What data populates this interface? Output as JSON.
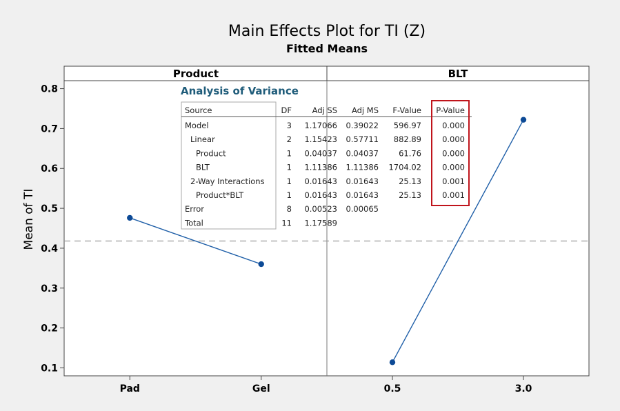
{
  "chart_data": {
    "type": "line",
    "title": "Main Effects Plot for TI (Z)",
    "subtitle": "Fitted Means",
    "ylabel": "Mean of TI",
    "ylim": [
      0.08,
      0.82
    ],
    "yticks": [
      "0.1",
      "0.2",
      "0.3",
      "0.4",
      "0.5",
      "0.6",
      "0.7",
      "0.8"
    ],
    "reference_mean": 0.418,
    "reference_line_style": "dashed",
    "panels": [
      {
        "label": "Product",
        "categories": [
          "Pad",
          "Gel"
        ],
        "values": [
          0.476,
          0.36
        ]
      },
      {
        "label": "BLT",
        "categories": [
          "0.5",
          "3.0"
        ],
        "values": [
          0.114,
          0.722
        ]
      }
    ],
    "line_color": "#1f5fa8",
    "marker_color": "#0d4a96",
    "highlight_color": "#c0141b",
    "anova": {
      "title": "Analysis of Variance",
      "columns": [
        "Source",
        "DF",
        "Adj SS",
        "Adj MS",
        "F-Value",
        "P-Value"
      ],
      "rows": [
        {
          "source": "Model",
          "indent": 0,
          "df": "3",
          "adj_ss": "1.17066",
          "adj_ms": "0.39022",
          "f_value": "596.97",
          "p_value": "0.000"
        },
        {
          "source": "Linear",
          "indent": 1,
          "df": "2",
          "adj_ss": "1.15423",
          "adj_ms": "0.57711",
          "f_value": "882.89",
          "p_value": "0.000"
        },
        {
          "source": "Product",
          "indent": 2,
          "df": "1",
          "adj_ss": "0.04037",
          "adj_ms": "0.04037",
          "f_value": "61.76",
          "p_value": "0.000"
        },
        {
          "source": "BLT",
          "indent": 2,
          "df": "1",
          "adj_ss": "1.11386",
          "adj_ms": "1.11386",
          "f_value": "1704.02",
          "p_value": "0.000"
        },
        {
          "source": "2-Way Interactions",
          "indent": 1,
          "df": "1",
          "adj_ss": "0.01643",
          "adj_ms": "0.01643",
          "f_value": "25.13",
          "p_value": "0.001"
        },
        {
          "source": "Product*BLT",
          "indent": 2,
          "df": "1",
          "adj_ss": "0.01643",
          "adj_ms": "0.01643",
          "f_value": "25.13",
          "p_value": "0.001"
        },
        {
          "source": "Error",
          "indent": 0,
          "df": "8",
          "adj_ss": "0.00523",
          "adj_ms": "0.00065",
          "f_value": "",
          "p_value": ""
        },
        {
          "source": "Total",
          "indent": 0,
          "df": "11",
          "adj_ss": "1.17589",
          "adj_ms": "",
          "f_value": "",
          "p_value": ""
        }
      ]
    }
  }
}
